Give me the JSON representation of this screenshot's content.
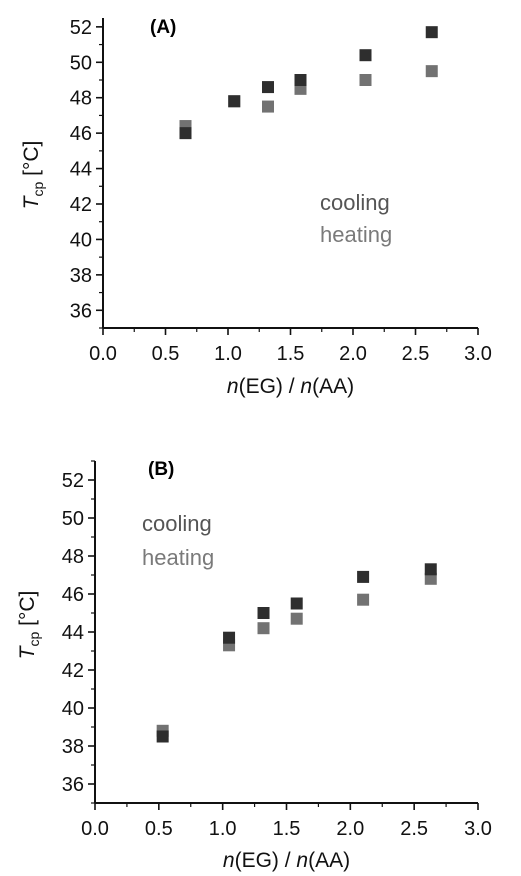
{
  "colors": {
    "cooling": "#2e2e2e",
    "heating": "#727272",
    "axis": "#111111"
  },
  "chart_data": [
    {
      "type": "scatter",
      "panel_label": "(A)",
      "title": "",
      "xlabel_parts": [
        "n",
        "(EG) / ",
        "n",
        "(AA)"
      ],
      "ylabel_parts": [
        "T",
        "cp",
        " [°C]"
      ],
      "xlim": [
        0.0,
        3.0
      ],
      "ylim": [
        35,
        52.5
      ],
      "xticks": [
        0.0,
        0.5,
        1.0,
        1.5,
        2.0,
        2.5,
        3.0
      ],
      "yticks": [
        36,
        38,
        40,
        42,
        44,
        46,
        48,
        50,
        52
      ],
      "legend": [
        "cooling",
        "heating"
      ],
      "legend_position": "center-right",
      "grid": false,
      "series": [
        {
          "name": "cooling",
          "x": [
            0.66,
            1.05,
            1.32,
            1.58,
            2.1,
            2.63
          ],
          "y": [
            46.0,
            47.8,
            48.6,
            49.0,
            50.4,
            51.7
          ]
        },
        {
          "name": "heating",
          "x": [
            0.66,
            1.05,
            1.32,
            1.58,
            2.1,
            2.63
          ],
          "y": [
            46.4,
            47.8,
            47.5,
            48.5,
            49.0,
            49.5
          ]
        }
      ]
    },
    {
      "type": "scatter",
      "panel_label": "(B)",
      "title": "",
      "xlabel_parts": [
        "n",
        "(EG) / ",
        "n",
        "(AA)"
      ],
      "ylabel_parts": [
        "T",
        "cp",
        " [°C]"
      ],
      "xlim": [
        0.0,
        3.0
      ],
      "ylim": [
        35,
        53
      ],
      "xticks": [
        0.0,
        0.5,
        1.0,
        1.5,
        2.0,
        2.5,
        3.0
      ],
      "yticks": [
        36,
        38,
        40,
        42,
        44,
        46,
        48,
        50,
        52
      ],
      "legend": [
        "cooling",
        "heating"
      ],
      "legend_position": "upper-left",
      "grid": false,
      "series": [
        {
          "name": "cooling",
          "x": [
            0.53,
            1.05,
            1.32,
            1.58,
            2.1,
            2.63
          ],
          "y": [
            38.5,
            43.7,
            45.0,
            45.5,
            46.9,
            47.3
          ]
        },
        {
          "name": "heating",
          "x": [
            0.53,
            1.05,
            1.32,
            1.58,
            2.1,
            2.63
          ],
          "y": [
            38.8,
            43.3,
            44.2,
            44.7,
            45.7,
            46.8
          ]
        }
      ]
    }
  ]
}
